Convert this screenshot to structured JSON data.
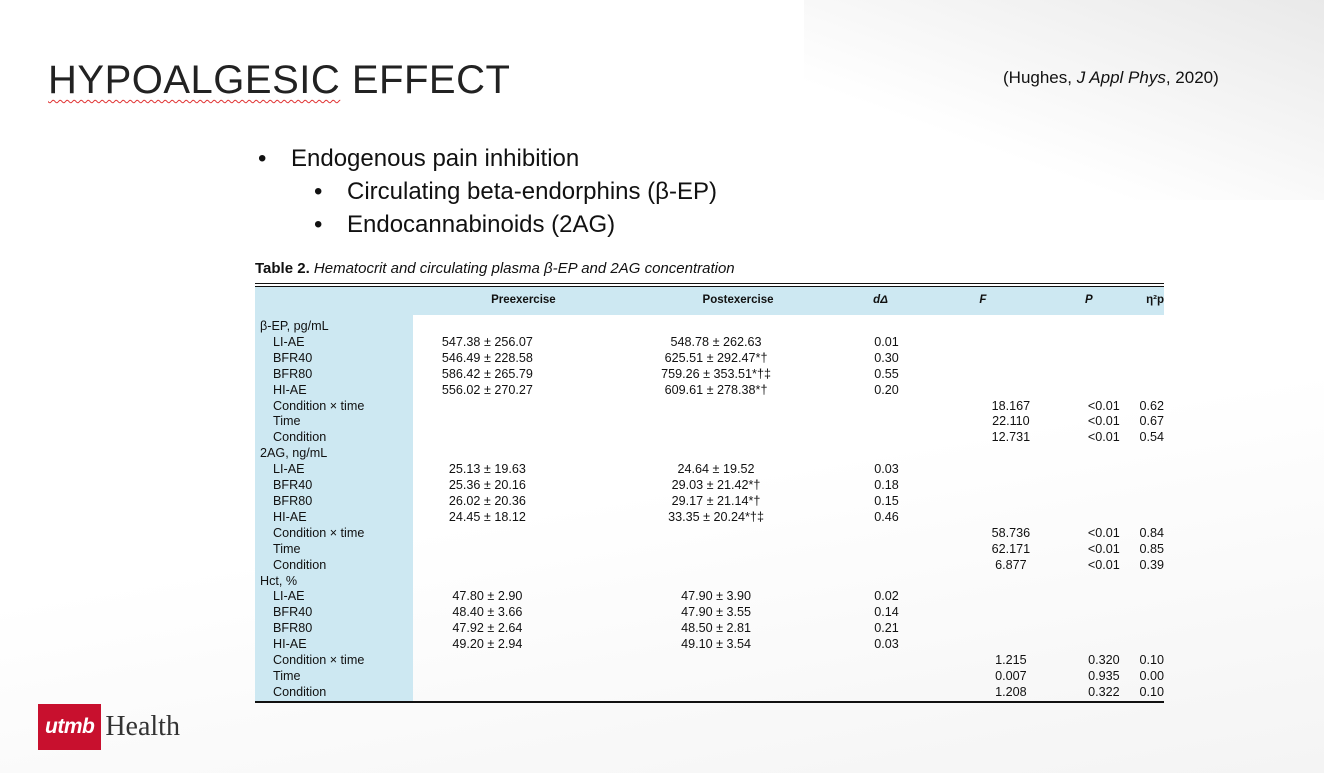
{
  "slide": {
    "title_part1": "HYPOALGESIC",
    "title_part2": " EFFECT",
    "citation_pre": "(Hughes, ",
    "citation_journal": "J Appl Phys",
    "citation_post": ", 2020)"
  },
  "bullets": {
    "b1": "Endogenous pain inhibition",
    "b2": "Circulating beta-endorphins (β-EP)",
    "b3": "Endocannabinoids (2AG)",
    "bullet_char": "•"
  },
  "table": {
    "caption_bold": "Table 2.",
    "caption_italic": "Hematocrit and circulating plasma β-EP and 2AG concentration",
    "headers": [
      "",
      "Preexercise",
      "Postexercise",
      "dΔ",
      "F",
      "P",
      "η²p"
    ],
    "rows": [
      {
        "label": "β-EP, pg/mL",
        "indent": false,
        "pre": "",
        "post": "",
        "d": "",
        "f": "",
        "p": "",
        "eta": ""
      },
      {
        "label": "LI-AE",
        "indent": true,
        "pre": "547.38 ± 256.07",
        "post": "548.78 ± 262.63",
        "d": "0.01",
        "f": "",
        "p": "",
        "eta": ""
      },
      {
        "label": "BFR40",
        "indent": true,
        "pre": "546.49 ± 228.58",
        "post": "625.51 ± 292.47*†",
        "d": "0.30",
        "f": "",
        "p": "",
        "eta": ""
      },
      {
        "label": "BFR80",
        "indent": true,
        "pre": "586.42 ± 265.79",
        "post": "759.26 ± 353.51*†‡",
        "d": "0.55",
        "f": "",
        "p": "",
        "eta": ""
      },
      {
        "label": "HI-AE",
        "indent": true,
        "pre": "556.02 ± 270.27",
        "post": "609.61 ± 278.38*†",
        "d": "0.20",
        "f": "",
        "p": "",
        "eta": ""
      },
      {
        "label": "Condition × time",
        "indent": true,
        "pre": "",
        "post": "",
        "d": "",
        "f": "18.167",
        "p": "<0.01",
        "eta": "0.62"
      },
      {
        "label": "Time",
        "indent": true,
        "pre": "",
        "post": "",
        "d": "",
        "f": "22.110",
        "p": "<0.01",
        "eta": "0.67"
      },
      {
        "label": "Condition",
        "indent": true,
        "pre": "",
        "post": "",
        "d": "",
        "f": "12.731",
        "p": "<0.01",
        "eta": "0.54"
      },
      {
        "label": "2AG, ng/mL",
        "indent": false,
        "pre": "",
        "post": "",
        "d": "",
        "f": "",
        "p": "",
        "eta": ""
      },
      {
        "label": "LI-AE",
        "indent": true,
        "pre": "25.13 ± 19.63",
        "post": "24.64 ± 19.52",
        "d": "0.03",
        "f": "",
        "p": "",
        "eta": ""
      },
      {
        "label": "BFR40",
        "indent": true,
        "pre": "25.36 ± 20.16",
        "post": "29.03 ± 21.42*†",
        "d": "0.18",
        "f": "",
        "p": "",
        "eta": ""
      },
      {
        "label": "BFR80",
        "indent": true,
        "pre": "26.02 ± 20.36",
        "post": "29.17 ± 21.14*†",
        "d": "0.15",
        "f": "",
        "p": "",
        "eta": ""
      },
      {
        "label": "HI-AE",
        "indent": true,
        "pre": "24.45 ± 18.12",
        "post": "33.35 ± 20.24*†‡",
        "d": "0.46",
        "f": "",
        "p": "",
        "eta": ""
      },
      {
        "label": "Condition × time",
        "indent": true,
        "pre": "",
        "post": "",
        "d": "",
        "f": "58.736",
        "p": "<0.01",
        "eta": "0.84"
      },
      {
        "label": "Time",
        "indent": true,
        "pre": "",
        "post": "",
        "d": "",
        "f": "62.171",
        "p": "<0.01",
        "eta": "0.85"
      },
      {
        "label": "Condition",
        "indent": true,
        "pre": "",
        "post": "",
        "d": "",
        "f": "6.877",
        "p": "<0.01",
        "eta": "0.39"
      },
      {
        "label": "Hct, %",
        "indent": false,
        "pre": "",
        "post": "",
        "d": "",
        "f": "",
        "p": "",
        "eta": ""
      },
      {
        "label": "LI-AE",
        "indent": true,
        "pre": "47.80 ± 2.90",
        "post": "47.90 ± 3.90",
        "d": "0.02",
        "f": "",
        "p": "",
        "eta": ""
      },
      {
        "label": "BFR40",
        "indent": true,
        "pre": "48.40 ± 3.66",
        "post": "47.90 ± 3.55",
        "d": "0.14",
        "f": "",
        "p": "",
        "eta": ""
      },
      {
        "label": "BFR80",
        "indent": true,
        "pre": "47.92 ± 2.64",
        "post": "48.50 ± 2.81",
        "d": "0.21",
        "f": "",
        "p": "",
        "eta": ""
      },
      {
        "label": "HI-AE",
        "indent": true,
        "pre": "49.20 ± 2.94",
        "post": "49.10 ± 3.54",
        "d": "0.03",
        "f": "",
        "p": "",
        "eta": ""
      },
      {
        "label": "Condition × time",
        "indent": true,
        "pre": "",
        "post": "",
        "d": "",
        "f": "1.215",
        "p": "0.320",
        "eta": "0.10"
      },
      {
        "label": "Time",
        "indent": true,
        "pre": "",
        "post": "",
        "d": "",
        "f": "0.007",
        "p": "0.935",
        "eta": "0.00"
      },
      {
        "label": "Condition",
        "indent": true,
        "pre": "",
        "post": "",
        "d": "",
        "f": "1.208",
        "p": "0.322",
        "eta": "0.10"
      }
    ]
  },
  "logo": {
    "box_text": "utmb",
    "word": "Health",
    "brand_color": "#c8102e"
  }
}
